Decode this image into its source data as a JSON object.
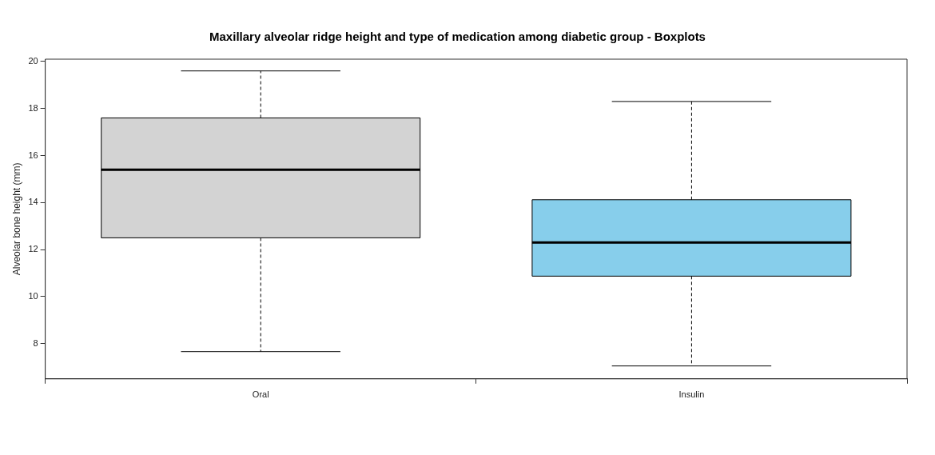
{
  "chart_data": {
    "type": "box",
    "title": "Maxillary alveolar ridge height and type of medication among diabetic group - Boxplots",
    "ylabel": "Alveolar bone height (mm)",
    "categories": [
      "Oral",
      "Insulin"
    ],
    "colors": [
      "#d3d3d3",
      "#87ceeb"
    ],
    "boxes": [
      {
        "low": 7.66,
        "q1": 12.5,
        "median": 15.4,
        "q3": 17.6,
        "high": 19.6
      },
      {
        "low": 7.05,
        "q1": 10.87,
        "median": 12.3,
        "q3": 14.12,
        "high": 18.3
      }
    ],
    "ylim": [
      6.5,
      20.1
    ],
    "yticks": [
      8,
      10,
      12,
      14,
      16,
      18,
      20
    ],
    "grid": false,
    "legend": false
  }
}
